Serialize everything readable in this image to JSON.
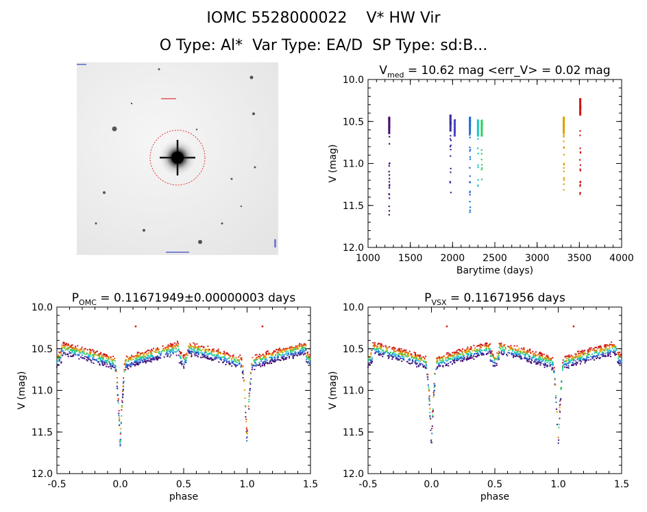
{
  "header": {
    "line1": "IOMC 5528000022    V* HW Vir",
    "line2": "O Type: Al*  Var Type: EA/D  SP Type: sd:B..."
  },
  "image_panel": {
    "description_icon": "star-field-image",
    "circle_color": "#e03030"
  },
  "chart_data": [
    {
      "type": "scatter",
      "id": "time-series",
      "title_main": "V",
      "title_sub": "med",
      "title_rest": " = 10.62 mag <err_V> = 0.02 mag",
      "xlabel": "Barytime (days)",
      "ylabel": "V (mag)",
      "xlim": [
        1000,
        4000
      ],
      "ylim": [
        12.0,
        10.0
      ],
      "y_inverted": true,
      "xticks": [
        "1000",
        "1500",
        "2000",
        "2500",
        "3000",
        "3500",
        "4000"
      ],
      "yticks": [
        "10.0",
        "10.5",
        "11.0",
        "11.5",
        "12.0"
      ],
      "series": [
        {
          "color": "#4a0b6e",
          "x_center": 1250,
          "x_spread": 6,
          "y_min": 10.45,
          "y_max": 11.62,
          "n": 80
        },
        {
          "color": "#3c2f9a",
          "x_center": 1975,
          "x_spread": 8,
          "y_min": 10.42,
          "y_max": 11.38,
          "n": 40
        },
        {
          "color": "#4646c8",
          "x_center": 2025,
          "x_spread": 6,
          "y_min": 10.48,
          "y_max": 10.65,
          "n": 30
        },
        {
          "color": "#1f6fd6",
          "x_center": 2205,
          "x_spread": 5,
          "y_min": 10.45,
          "y_max": 11.63,
          "n": 80
        },
        {
          "color": "#1fc6c6",
          "x_center": 2300,
          "x_spread": 5,
          "y_min": 10.48,
          "y_max": 11.4,
          "n": 30
        },
        {
          "color": "#30d060",
          "x_center": 2345,
          "x_spread": 6,
          "y_min": 10.48,
          "y_max": 11.25,
          "n": 35
        },
        {
          "color": "#e0a000",
          "x_center": 3315,
          "x_spread": 6,
          "y_min": 10.45,
          "y_max": 11.42,
          "n": 60
        },
        {
          "color": "#d01818",
          "x_center": 3510,
          "x_spread": 6,
          "y_min": 10.23,
          "y_max": 11.42,
          "n": 80
        }
      ]
    },
    {
      "type": "scatter",
      "id": "phase-omc",
      "title_main": "P",
      "title_sub": "OMC",
      "title_rest": " = 0.11671949±0.00000003 days",
      "xlabel": "phase",
      "ylabel": "V (mag)",
      "xlim": [
        -0.5,
        1.5
      ],
      "ylim": [
        12.0,
        10.0
      ],
      "y_inverted": true,
      "xticks": [
        "-0.5",
        "0.0",
        "0.5",
        "1.0",
        "1.5"
      ],
      "yticks": [
        "10.0",
        "10.5",
        "11.0",
        "11.5",
        "12.0"
      ],
      "colors": [
        "#4a0b6e",
        "#3c2f9a",
        "#1f6fd6",
        "#1fc6c6",
        "#30d060",
        "#e0a000",
        "#e06010",
        "#d01818"
      ],
      "light_curve": {
        "base_max": 10.48,
        "pre_primary": 10.68,
        "primary_depth": 11.63,
        "secondary_phase": 0.5,
        "secondary_level": 10.58,
        "outlier_y": 10.23,
        "outlier_phases": [
          0.12,
          1.12
        ]
      }
    },
    {
      "type": "scatter",
      "id": "phase-vsx",
      "title_main": "P",
      "title_sub": "VSX",
      "title_rest": " = 0.11671956 days",
      "xlabel": "phase",
      "ylabel": "V (mag)",
      "xlim": [
        -0.5,
        1.5
      ],
      "ylim": [
        12.0,
        10.0
      ],
      "y_inverted": true,
      "xticks": [
        "-0.5",
        "0.0",
        "0.5",
        "1.0",
        "1.5"
      ],
      "yticks": [
        "10.0",
        "10.5",
        "11.0",
        "11.5",
        "12.0"
      ],
      "colors": [
        "#4a0b6e",
        "#3c2f9a",
        "#1f6fd6",
        "#1fc6c6",
        "#30d060",
        "#e0a000",
        "#e06010",
        "#d01818"
      ],
      "light_curve": {
        "base_max": 10.48,
        "pre_primary": 10.68,
        "primary_depth": 11.63,
        "secondary_phase": 0.5,
        "secondary_level": 10.58,
        "outlier_y": 10.23,
        "outlier_phases": [
          0.12,
          1.12
        ]
      }
    }
  ]
}
